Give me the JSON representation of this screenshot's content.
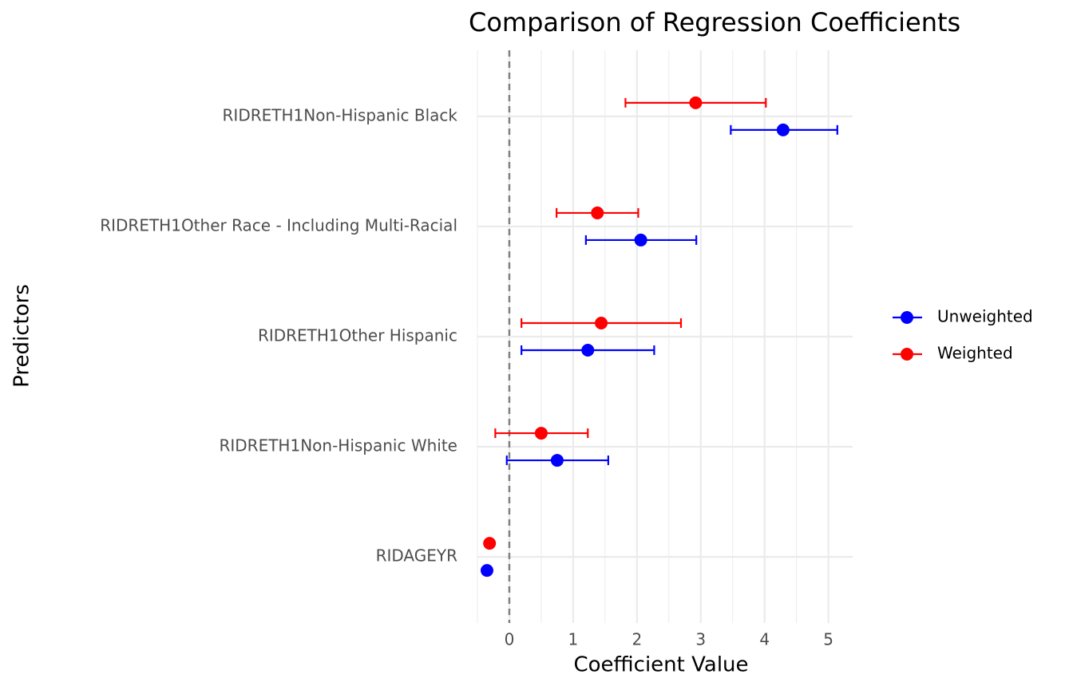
{
  "chart_data": {
    "type": "dot-errorbar",
    "title": "Comparison of Regression Coefficients",
    "x_label": "Coefficient Value",
    "y_label": "Predictors",
    "categories": [
      "RIDRETH1Non-Hispanic Black",
      "RIDRETH1Other Race - Including Multi-Racial",
      "RIDRETH1Other Hispanic",
      "RIDRETH1Non-Hispanic White",
      "RIDAGEYR"
    ],
    "series": [
      {
        "name": "Unweighted",
        "color": "#0000ff",
        "values": [
          4.29,
          2.06,
          1.23,
          0.75,
          -0.35
        ],
        "lower": [
          3.47,
          1.2,
          0.19,
          -0.04,
          -0.36
        ],
        "upper": [
          5.14,
          2.93,
          2.27,
          1.55,
          -0.34
        ]
      },
      {
        "name": "Weighted",
        "color": "#ff0000",
        "values": [
          2.92,
          1.38,
          1.44,
          0.5,
          -0.31
        ],
        "lower": [
          1.82,
          0.74,
          0.19,
          -0.22,
          -0.32
        ],
        "upper": [
          4.02,
          2.02,
          2.69,
          1.23,
          -0.3
        ]
      }
    ],
    "xlim": [
      -0.5,
      5.38
    ],
    "xticks": [
      0,
      1,
      2,
      3,
      4,
      5
    ],
    "reference_x": 0,
    "grid": true,
    "legend": "right"
  }
}
